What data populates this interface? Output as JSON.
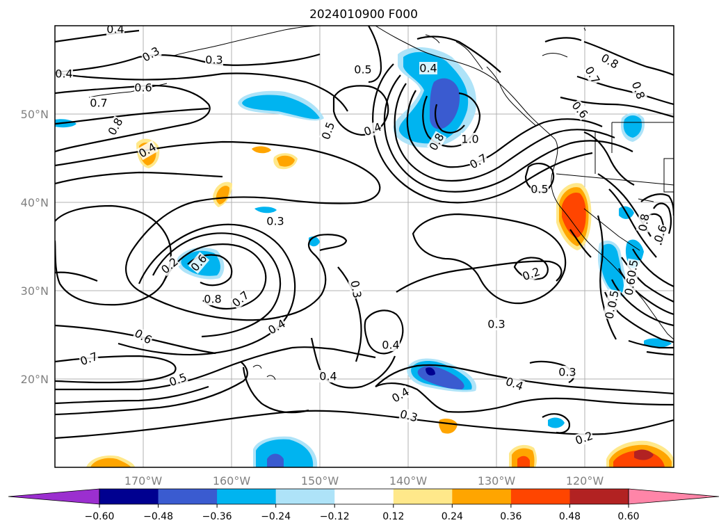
{
  "title": "2024010900 F000",
  "colors": {
    "neg_060": "#9b2fcf",
    "neg_048": "#000090",
    "neg_036": "#3a5bd0",
    "neg_024": "#00b4f0",
    "neg_012": "#aee3f8",
    "zero": "#ffffff",
    "pos_012": "#ffe88a",
    "pos_024": "#ffa500",
    "pos_036": "#ff4500",
    "pos_048": "#b22222",
    "pos_060": "#ff85a8",
    "contour": "#000000",
    "coast": "#000000",
    "grid": "#b0b0b0",
    "tick_text": "#808080"
  },
  "axes": {
    "lon_labels": [
      "170°W",
      "160°W",
      "150°W",
      "140°W",
      "130°W",
      "120°W"
    ],
    "lat_labels": [
      "50°N",
      "40°N",
      "30°N",
      "20°N"
    ],
    "lon_range": [
      "180°W",
      "110°W"
    ],
    "lat_range": [
      "10°N",
      "60°N"
    ],
    "grid": true
  },
  "contour_labels": [
    "0.4",
    "0.3",
    "0.3",
    "0.4",
    "0.6",
    "0.7",
    "0.8",
    "0.4",
    "0.5",
    "0.4",
    "0.5",
    "0.4",
    "0.8",
    "1.0",
    "0.7",
    "0.8",
    "0.7",
    "0.8",
    "0.6",
    "0.5",
    "0.3",
    "0.2",
    "0.6",
    "0.8",
    "0.7",
    "0.4",
    "0.3",
    "0.4",
    "0.6",
    "0.7",
    "0.5",
    "0.4",
    "0.4",
    "0.3",
    "0.4",
    "0.3",
    "0.2",
    "0.2",
    "0.3",
    "0.5",
    "0.5",
    "0.6",
    "0.5",
    "0.8",
    "0.6"
  ],
  "colorbar": {
    "ticks": [
      "−0.60",
      "−0.48",
      "−0.36",
      "−0.24",
      "−0.12",
      "0.12",
      "0.24",
      "0.36",
      "0.48",
      "0.60"
    ],
    "extend": "both",
    "levels": [
      -0.6,
      -0.48,
      -0.36,
      -0.24,
      -0.12,
      0.12,
      0.24,
      0.36,
      0.48,
      0.6
    ]
  }
}
